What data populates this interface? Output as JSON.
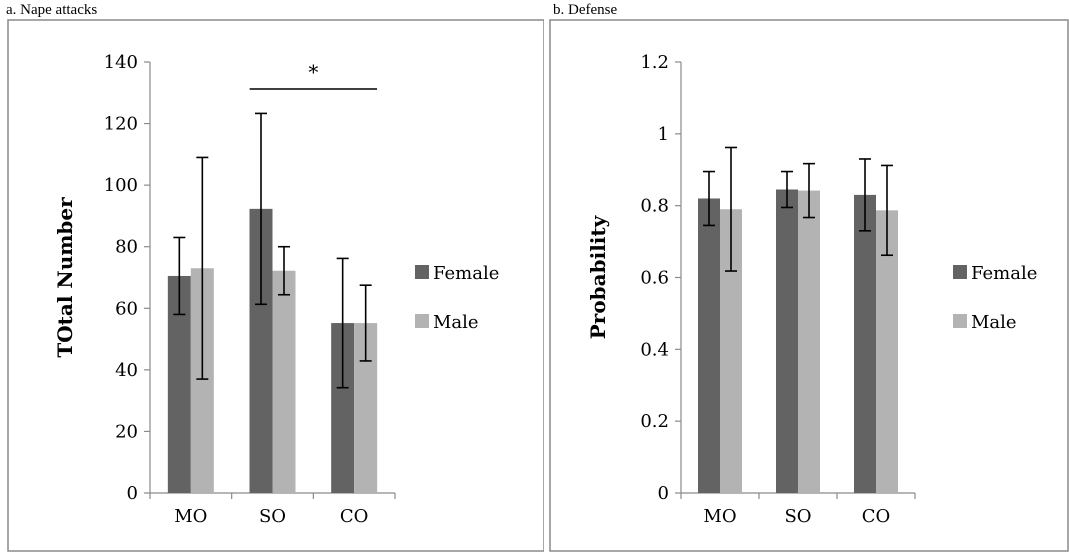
{
  "chart_data": [
    {
      "type": "bar",
      "panel_label": "a. Nape attacks",
      "categories": [
        "MO",
        "SO",
        "CO"
      ],
      "series": [
        {
          "name": "Female",
          "values": [
            70.5,
            92.3,
            55.2
          ],
          "error": [
            12.5,
            31.0,
            21.0
          ],
          "color": "#636363"
        },
        {
          "name": "Male",
          "values": [
            73.0,
            72.2,
            55.2
          ],
          "error": [
            36.0,
            7.8,
            12.3
          ],
          "color": "#b3b3b3"
        }
      ],
      "ylabel": "TOtal Number",
      "xlabel": "",
      "ylim": [
        0,
        140
      ],
      "yticks": [
        "0",
        "20",
        "40",
        "60",
        "80",
        "100",
        "120",
        "140"
      ],
      "grid": false,
      "legend": "right",
      "annotation": {
        "text": "*",
        "between": [
          "SO",
          "CO"
        ]
      }
    },
    {
      "type": "bar",
      "panel_label": "b. Defense",
      "categories": [
        "MO",
        "SO",
        "CO"
      ],
      "series": [
        {
          "name": "Female",
          "values": [
            0.82,
            0.845,
            0.83
          ],
          "error": [
            0.075,
            0.05,
            0.1
          ],
          "color": "#636363"
        },
        {
          "name": "Male",
          "values": [
            0.79,
            0.842,
            0.787
          ],
          "error": [
            0.172,
            0.075,
            0.125
          ],
          "color": "#b3b3b3"
        }
      ],
      "ylabel": "Probability",
      "xlabel": "",
      "ylim": [
        0,
        1.2
      ],
      "yticks": [
        "0",
        "0.2",
        "0.4",
        "0.6",
        "0.8",
        "1",
        "1.2"
      ],
      "grid": false,
      "legend": "right"
    }
  ]
}
